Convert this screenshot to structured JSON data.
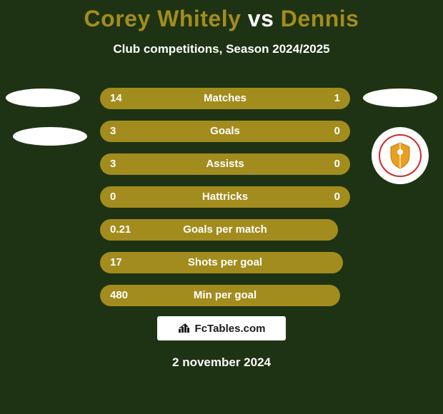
{
  "background_color": "#1e3313",
  "text_color": "#ffffff",
  "accent_color": "#a38c1e",
  "title": {
    "player1": "Corey Whitely",
    "vs": "vs",
    "player2": "Dennis",
    "p1_color": "#a38c1e",
    "vs_color": "#ffffff",
    "p2_color": "#a38c1e",
    "fontsize": 32
  },
  "subtitle": "Club competitions, Season 2024/2025",
  "rows": [
    {
      "label": "Matches",
      "left": "14",
      "right": "1",
      "bar_pct": 100
    },
    {
      "label": "Goals",
      "left": "3",
      "right": "0",
      "bar_pct": 100
    },
    {
      "label": "Assists",
      "left": "3",
      "right": "0",
      "bar_pct": 100
    },
    {
      "label": "Hattricks",
      "left": "0",
      "right": "0",
      "bar_pct": 100
    },
    {
      "label": "Goals per match",
      "left": "0.21",
      "right": "",
      "bar_pct": 95
    },
    {
      "label": "Shots per goal",
      "left": "17",
      "right": "",
      "bar_pct": 97
    },
    {
      "label": "Min per goal",
      "left": "480",
      "right": "",
      "bar_pct": 96
    }
  ],
  "row_style": {
    "track_color": "#1e3313",
    "bar_color": "#a38c1e",
    "height": 30,
    "value_color": "#ffffff",
    "label_color": "#ffffff",
    "fontsize": 15
  },
  "badges": {
    "placeholder_color": "#ffffff",
    "club_border_color": "#d02a2a",
    "club_shield_color": "#e8a020"
  },
  "footer": {
    "brand": "FcTables.com",
    "box_bg": "#ffffff",
    "text_color": "#1a1a1a"
  },
  "date": "2 november 2024"
}
